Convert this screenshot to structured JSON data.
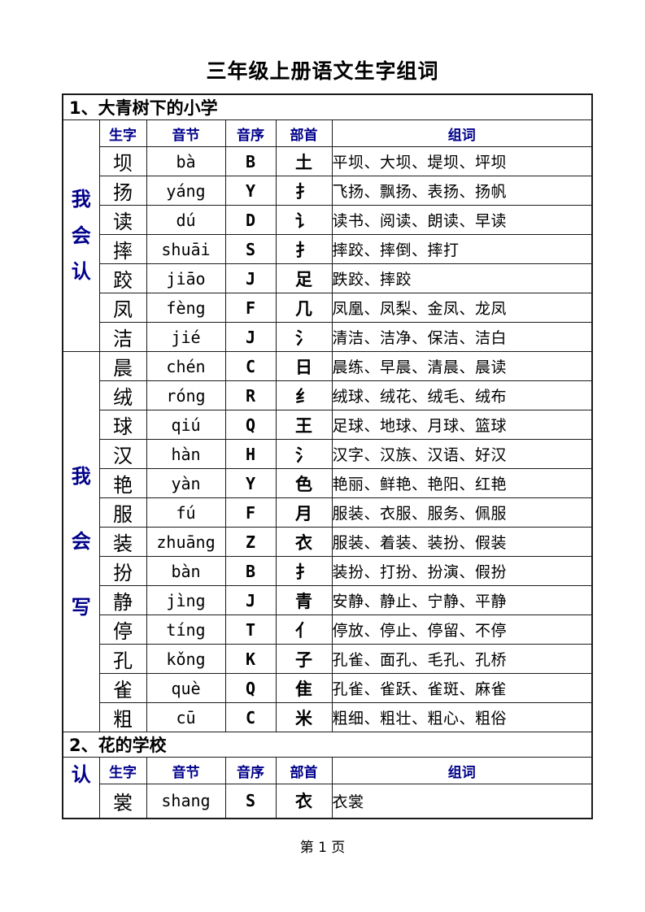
{
  "page": {
    "title": "三年级上册语文生字组词",
    "footer": "第 1 页"
  },
  "colors": {
    "accent_blue": "#00008B",
    "border": "#1a1a1a",
    "background": "#ffffff"
  },
  "table": {
    "headers": [
      "生字",
      "音节",
      "音序",
      "部首",
      "组词"
    ],
    "sections": [
      {
        "title": "1、大青树下的小学",
        "groups": [
          {
            "label": "我会认",
            "rows": [
              {
                "hanzi": "坝",
                "pinyin": "bà",
                "initial": "B",
                "radical": "土",
                "words": "平坝、大坝、堤坝、坪坝"
              },
              {
                "hanzi": "扬",
                "pinyin": "yáng",
                "initial": "Y",
                "radical": "扌",
                "words": "飞扬、飘扬、表扬、扬帆"
              },
              {
                "hanzi": "读",
                "pinyin": "dú",
                "initial": "D",
                "radical": "讠",
                "words": "读书、阅读、朗读、早读"
              },
              {
                "hanzi": "摔",
                "pinyin": "shuāi",
                "initial": "S",
                "radical": "扌",
                "words": "摔跤、摔倒、摔打"
              },
              {
                "hanzi": "跤",
                "pinyin": "jiāo",
                "initial": "J",
                "radical": "足",
                "words": "跌跤、摔跤"
              },
              {
                "hanzi": "凤",
                "pinyin": "fèng",
                "initial": "F",
                "radical": "几",
                "words": "凤凰、凤梨、金凤、龙凤"
              },
              {
                "hanzi": "洁",
                "pinyin": "jié",
                "initial": "J",
                "radical": "氵",
                "words": "清洁、洁净、保洁、洁白"
              }
            ]
          },
          {
            "label": "我会写",
            "rows": [
              {
                "hanzi": "晨",
                "pinyin": "chén",
                "initial": "C",
                "radical": "日",
                "words": "晨练、早晨、清晨、晨读"
              },
              {
                "hanzi": "绒",
                "pinyin": "róng",
                "initial": "R",
                "radical": "纟",
                "words": "绒球、绒花、绒毛、绒布"
              },
              {
                "hanzi": "球",
                "pinyin": "qiú",
                "initial": "Q",
                "radical": "王",
                "words": "足球、地球、月球、篮球"
              },
              {
                "hanzi": "汉",
                "pinyin": "hàn",
                "initial": "H",
                "radical": "氵",
                "words": "汉字、汉族、汉语、好汉"
              },
              {
                "hanzi": "艳",
                "pinyin": "yàn",
                "initial": "Y",
                "radical": "色",
                "words": "艳丽、鲜艳、艳阳、红艳"
              },
              {
                "hanzi": "服",
                "pinyin": "fú",
                "initial": "F",
                "radical": "月",
                "words": "服装、衣服、服务、佩服"
              },
              {
                "hanzi": "装",
                "pinyin": "zhuāng",
                "initial": "Z",
                "radical": "衣",
                "words": "服装、着装、装扮、假装"
              },
              {
                "hanzi": "扮",
                "pinyin": "bàn",
                "initial": "B",
                "radical": "扌",
                "words": "装扮、打扮、扮演、假扮"
              },
              {
                "hanzi": "静",
                "pinyin": "jìng",
                "initial": "J",
                "radical": "青",
                "words": "安静、静止、宁静、平静"
              },
              {
                "hanzi": "停",
                "pinyin": "tíng",
                "initial": "T",
                "radical": "亻",
                "words": "停放、停止、停留、不停"
              },
              {
                "hanzi": "孔",
                "pinyin": "kǒng",
                "initial": "K",
                "radical": "子",
                "words": "孔雀、面孔、毛孔、孔桥"
              },
              {
                "hanzi": "雀",
                "pinyin": "què",
                "initial": "Q",
                "radical": "隹",
                "words": "孔雀、雀跃、雀斑、麻雀"
              },
              {
                "hanzi": "粗",
                "pinyin": "cū",
                "initial": "C",
                "radical": "米",
                "words": "粗细、粗壮、粗心、粗俗"
              }
            ]
          }
        ]
      },
      {
        "title": "2、花的学校",
        "groups": [
          {
            "label": "认",
            "rows": [
              {
                "hanzi": "裳",
                "pinyin": "shang",
                "initial": "S",
                "radical": "衣",
                "words": "衣裳"
              }
            ]
          }
        ]
      }
    ]
  }
}
